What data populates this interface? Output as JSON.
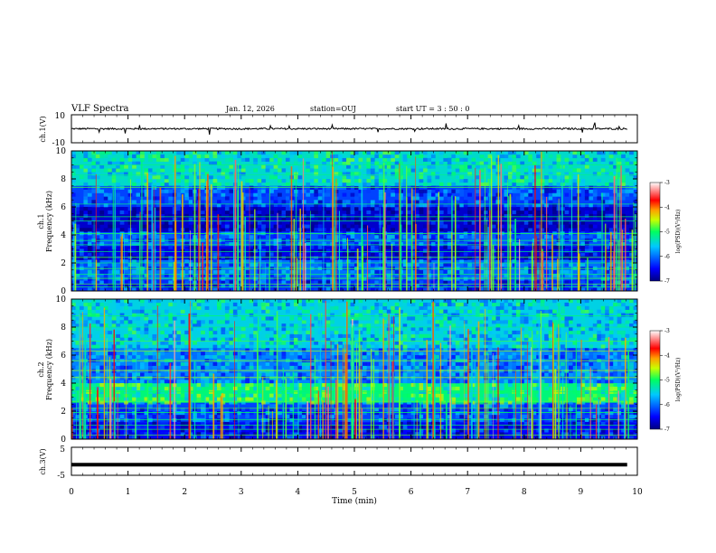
{
  "header": {
    "title": "VLF Spectra",
    "date": "Jan. 12, 2026",
    "station": "station=OUJ",
    "start": "start UT = 3 : 50 : 0"
  },
  "chart_data": [
    {
      "type": "line",
      "panel": "ch1-waveform",
      "ylabel": "ch.1(V)",
      "ylim": [
        -10,
        10
      ],
      "yticks": [
        "10",
        "-10"
      ],
      "x_range_min": [
        0,
        9.82
      ],
      "baseline_v": 0,
      "note": "noisy waveform near 0 V with occasional spikes of about ±3 V"
    },
    {
      "type": "heatmap",
      "panel": "ch1-spectrogram",
      "ylabel_line1": "ch.1",
      "ylabel_line2": "Frequency (kHz)",
      "ylim": [
        0,
        10
      ],
      "yticks": [
        "0",
        "2",
        "4",
        "6",
        "8",
        "10"
      ],
      "x_range_min": [
        0,
        9.82
      ],
      "colorbar": {
        "label": "log(PSD)(V²/Hz)",
        "range": [
          -7,
          -3
        ],
        "ticks": [
          "-3",
          "-4",
          "-5",
          "-6",
          "-7"
        ]
      },
      "bands": [
        {
          "f_khz": [
            0,
            0.8
          ],
          "level": -6.3
        },
        {
          "f_khz": [
            0.8,
            2.2
          ],
          "level": -6.0
        },
        {
          "f_khz": [
            2.2,
            3.2
          ],
          "level": -6.6
        },
        {
          "f_khz": [
            3.2,
            4.2
          ],
          "level": -6.1
        },
        {
          "f_khz": [
            4.2,
            6.0
          ],
          "level": -6.7
        },
        {
          "f_khz": [
            6.0,
            7.5
          ],
          "level": -6.2
        },
        {
          "f_khz": [
            7.5,
            10
          ],
          "level": -5.4
        }
      ],
      "spheric_count": 160,
      "line_frequencies_khz": [
        0.3,
        0.5,
        0.9,
        1.2,
        1.6,
        2.0,
        2.4,
        2.8,
        3.3,
        3.6,
        4.1,
        5.0,
        5.3,
        6.2,
        7.4,
        8.3,
        9.0
      ]
    },
    {
      "type": "heatmap",
      "panel": "ch2-spectrogram",
      "ylabel_line1": "ch.2",
      "ylabel_line2": "Frequency (kHz)",
      "ylim": [
        0,
        10
      ],
      "yticks": [
        "0",
        "2",
        "4",
        "6",
        "8",
        "10"
      ],
      "x_range_min": [
        0,
        9.82
      ],
      "colorbar": {
        "label": "log(PSD)(V²/Hz)",
        "range": [
          -7,
          -3
        ],
        "ticks": [
          "-3",
          "-4",
          "-5",
          "-6",
          "-7"
        ]
      },
      "bands": [
        {
          "f_khz": [
            0,
            1.2
          ],
          "level": -6.5
        },
        {
          "f_khz": [
            1.2,
            2.6
          ],
          "level": -6.2
        },
        {
          "f_khz": [
            2.6,
            4.0
          ],
          "level": -5.1
        },
        {
          "f_khz": [
            4.0,
            6.5
          ],
          "level": -5.9
        },
        {
          "f_khz": [
            6.5,
            10
          ],
          "level": -5.5
        }
      ],
      "spheric_count": 140,
      "line_frequencies_khz": [
        0.3,
        0.7,
        1.0,
        1.4,
        1.9,
        2.2,
        2.7,
        3.4,
        4.4,
        4.9,
        5.6,
        6.3,
        7.0,
        8.0,
        8.8
      ]
    },
    {
      "type": "line",
      "panel": "ch3-waveform",
      "ylabel": "ch.3(V)",
      "ylim": [
        -5,
        5
      ],
      "yticks": [
        "5",
        "-5"
      ],
      "x_range_min": [
        0,
        9.82
      ],
      "baseline_v": -1.2,
      "note": "thick nearly flat trace"
    }
  ],
  "x_axis": {
    "label": "Time (min)",
    "ticks": [
      "0",
      "1",
      "2",
      "3",
      "4",
      "5",
      "6",
      "7",
      "8",
      "9",
      "10"
    ],
    "range_min": [
      0,
      10
    ]
  }
}
